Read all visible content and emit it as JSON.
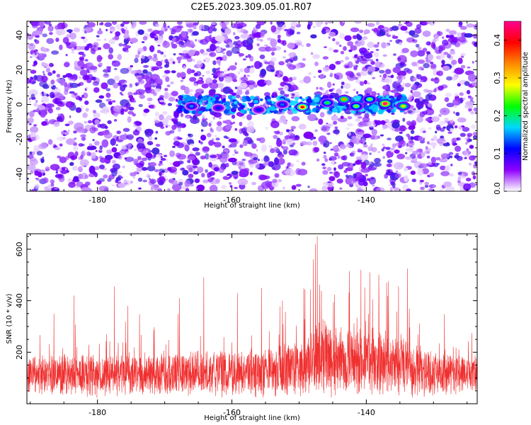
{
  "title": "C2E5.2023.309.05.01.R07",
  "chart_data": [
    {
      "type": "heatmap",
      "xlabel": "Height of straight line (km)",
      "ylabel": "Frequency (Hz)",
      "xlim": [
        -190.5,
        -123.5
      ],
      "ylim": [
        -50,
        48
      ],
      "xticks": [
        -180,
        -160,
        -140
      ],
      "xtick_labels": [
        "-180",
        "-160",
        "-140"
      ],
      "yticks": [
        -40,
        -20,
        0,
        20,
        40
      ],
      "ytick_labels": [
        "-40",
        "-20",
        "0",
        "20",
        "40"
      ],
      "colorbar": {
        "label": "Normalized spectral amplitude",
        "range": [
          0,
          0.45
        ],
        "ticks": [
          0.0,
          0.1,
          0.2,
          0.3,
          0.4
        ],
        "tick_labels": [
          "0.0",
          "0.1",
          "0.2",
          "0.3",
          "0.4"
        ],
        "colormap": [
          "#ffffff",
          "#8e00ff",
          "#0000ff",
          "#00d8ff",
          "#00ff00",
          "#ffff00",
          "#ff8800",
          "#ff0000",
          "#ff0090"
        ]
      },
      "signal_band": {
        "x_range": [
          -168,
          -134
        ],
        "frequency": 0
      },
      "peaks": [
        {
          "x": -137.2,
          "y": 0.5,
          "value": 0.45
        },
        {
          "x": -149.5,
          "y": -1.5,
          "value": 0.4
        },
        {
          "x": -143.3,
          "y": 3,
          "value": 0.33
        },
        {
          "x": -134.5,
          "y": -1,
          "value": 0.3
        },
        {
          "x": -139.5,
          "y": 3,
          "value": 0.25
        },
        {
          "x": -141.5,
          "y": -1,
          "value": 0.25
        },
        {
          "x": -145.8,
          "y": 1,
          "value": 0.22
        },
        {
          "x": -166,
          "y": -1,
          "value": 0.15
        },
        {
          "x": -162,
          "y": -2,
          "value": 0.12
        },
        {
          "x": -156,
          "y": -3,
          "value": 0.12
        },
        {
          "x": -152.5,
          "y": 0,
          "value": 0.14
        }
      ],
      "grid": false
    },
    {
      "type": "line",
      "xlabel": "Height of straight line (km)",
      "ylabel": "SNR (10 * v/v)",
      "xlim": [
        -190.5,
        -123.5
      ],
      "ylim": [
        0,
        660
      ],
      "xticks": [
        -180,
        -160,
        -140
      ],
      "xtick_labels": [
        "-180",
        "-160",
        "-140"
      ],
      "yticks": [
        200,
        400,
        600
      ],
      "ytick_labels": [
        "200",
        "400",
        "600"
      ],
      "color": "#f03030",
      "envelope": {
        "x": [
          -190.5,
          -185,
          -180,
          -175,
          -170,
          -165,
          -160,
          -155,
          -150,
          -148,
          -147,
          -145,
          -140,
          -135,
          -133,
          -130,
          -125,
          -123.5
        ],
        "baseline": [
          115,
          112,
          110,
          112,
          118,
          120,
          118,
          125,
          135,
          150,
          180,
          170,
          165,
          155,
          130,
          120,
          115,
          115
        ],
        "spread": [
          85,
          85,
          90,
          85,
          95,
          100,
          95,
          105,
          120,
          150,
          170,
          150,
          150,
          140,
          110,
          95,
          90,
          90
        ]
      },
      "spikes": [
        {
          "x": -147.3,
          "y": 650
        },
        {
          "x": -147.6,
          "y": 620
        },
        {
          "x": -147.9,
          "y": 560
        },
        {
          "x": -142.5,
          "y": 515
        },
        {
          "x": -140.8,
          "y": 520
        },
        {
          "x": -139.5,
          "y": 510
        },
        {
          "x": -133.9,
          "y": 525
        },
        {
          "x": -137,
          "y": 470
        },
        {
          "x": -164.2,
          "y": 490
        },
        {
          "x": -177.5,
          "y": 455
        },
        {
          "x": -155.6,
          "y": 450
        },
        {
          "x": -159.2,
          "y": 430
        },
        {
          "x": -152.5,
          "y": 400
        },
        {
          "x": -167.8,
          "y": 410
        },
        {
          "x": -183.5,
          "y": 420
        },
        {
          "x": -186.5,
          "y": 350
        },
        {
          "x": -175.5,
          "y": 380
        }
      ],
      "grid": false
    }
  ]
}
